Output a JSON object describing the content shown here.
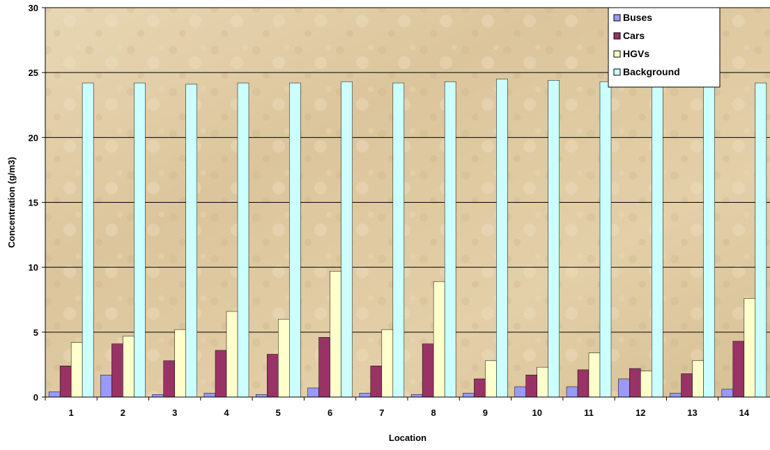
{
  "chart_data": {
    "type": "bar",
    "title": "",
    "xlabel": "Location",
    "ylabel": "Concentration (g/m3)",
    "ylim": [
      0,
      30
    ],
    "yticks": [
      0,
      5,
      10,
      15,
      20,
      25,
      30
    ],
    "grid": true,
    "legend_position": "top-right",
    "categories": [
      "1",
      "2",
      "3",
      "4",
      "5",
      "6",
      "7",
      "8",
      "9",
      "10",
      "11",
      "12",
      "13",
      "14"
    ],
    "series": [
      {
        "name": "Buses",
        "color": "#9999ff",
        "values": [
          0.4,
          1.7,
          0.2,
          0.3,
          0.2,
          0.7,
          0.3,
          0.2,
          0.3,
          0.8,
          0.8,
          1.4,
          0.3,
          0.6
        ]
      },
      {
        "name": "Cars",
        "color": "#993366",
        "values": [
          2.4,
          4.1,
          2.8,
          3.6,
          3.3,
          4.6,
          2.4,
          4.1,
          1.4,
          1.7,
          2.1,
          2.2,
          1.8,
          4.3
        ]
      },
      {
        "name": "HGVs",
        "color": "#ffffcc",
        "values": [
          4.2,
          4.7,
          5.2,
          6.6,
          6.0,
          9.7,
          5.2,
          8.9,
          2.8,
          2.3,
          3.4,
          2.0,
          2.8,
          7.6
        ]
      },
      {
        "name": "Background",
        "color": "#ccffff",
        "values": [
          24.2,
          24.2,
          24.1,
          24.2,
          24.2,
          24.3,
          24.2,
          24.3,
          24.5,
          24.4,
          24.3,
          24.2,
          24.4,
          24.2
        ]
      }
    ]
  }
}
